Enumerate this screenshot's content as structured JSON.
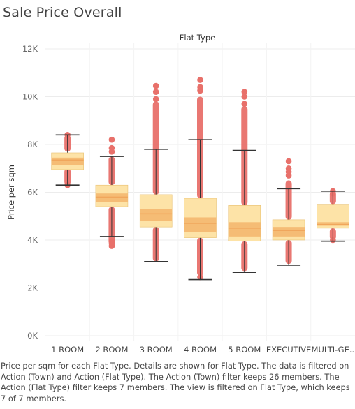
{
  "title": "Sale Price Overall",
  "caption": "Price per sqm for each Flat Type.  Details are shown for Flat Type. The data is filtered on Action (Town) and Action (Flat Type). The Action (Town) filter keeps 26 members. The Action (Flat Type) filter keeps 7 members. The view is filtered on Flat Type, which keeps 7 of 7 members.",
  "colors": {
    "outlier": "#e8706a",
    "box_outer": "#fde3a7",
    "box_inner": "#f5bc75",
    "median": "#f0a65c",
    "whisker": "#333333",
    "grid": "#ececec"
  },
  "chart_data": {
    "type": "box",
    "column_header": "Flat Type",
    "ylabel": "Price per sqm",
    "ylim": [
      0,
      12000
    ],
    "yticks": [
      0,
      2000,
      4000,
      6000,
      8000,
      10000,
      12000
    ],
    "ytick_labels": [
      "0K",
      "2K",
      "4K",
      "6K",
      "8K",
      "10K",
      "12K"
    ],
    "categories": [
      "1 ROOM",
      "2 ROOM",
      "3 ROOM",
      "4 ROOM",
      "5 ROOM",
      "EXECUTIVE",
      "MULTI-GE.."
    ],
    "boxes": [
      {
        "category": "1 ROOM",
        "lower_whisker": 6300,
        "q1": 6950,
        "inner_low": 7150,
        "median": 7350,
        "inner_high": 7450,
        "q3": 7650,
        "upper_whisker": 8400,
        "outliers_low": [
          6300
        ],
        "outliers_high": [
          8400
        ],
        "dense_low": [
          6300,
          7000
        ],
        "dense_high": [
          7700,
          8400
        ]
      },
      {
        "category": "2 ROOM",
        "lower_whisker": 4150,
        "q1": 5400,
        "inner_low": 5600,
        "median": 5800,
        "inner_high": 5950,
        "q3": 6300,
        "upper_whisker": 7500,
        "outliers_low": [
          3750,
          3850,
          3950
        ],
        "outliers_high": [
          7700,
          7850,
          8200
        ],
        "dense_low": [
          3800,
          5400
        ],
        "dense_high": [
          6300,
          7500
        ]
      },
      {
        "category": "3 ROOM",
        "lower_whisker": 3100,
        "q1": 4550,
        "inner_low": 4800,
        "median": 5100,
        "inner_high": 5300,
        "q3": 5900,
        "upper_whisker": 7800,
        "outliers_low": [],
        "outliers_high": [
          10450,
          10200,
          9900
        ],
        "dense_low": [
          3100,
          4550
        ],
        "dense_high": [
          5900,
          9800
        ]
      },
      {
        "category": "4 ROOM",
        "lower_whisker": 2350,
        "q1": 4100,
        "inner_low": 4350,
        "median": 4700,
        "inner_high": 4950,
        "q3": 5750,
        "upper_whisker": 8200,
        "outliers_low": [
          2450
        ],
        "outliers_high": [
          10700,
          10400,
          10250
        ],
        "dense_low": [
          2500,
          4100
        ],
        "dense_high": [
          5750,
          10000
        ]
      },
      {
        "category": "5 ROOM",
        "lower_whisker": 2650,
        "q1": 3950,
        "inner_low": 4150,
        "median": 4500,
        "inner_high": 4750,
        "q3": 5450,
        "upper_whisker": 7750,
        "outliers_low": [],
        "outliers_high": [
          10200,
          10000,
          9700
        ],
        "dense_low": [
          2700,
          3950
        ],
        "dense_high": [
          5450,
          9600
        ]
      },
      {
        "category": "EXECUTIVE",
        "lower_whisker": 2950,
        "q1": 4000,
        "inner_low": 4150,
        "median": 4400,
        "inner_high": 4550,
        "q3": 4850,
        "upper_whisker": 6150,
        "outliers_low": [],
        "outliers_high": [
          7300,
          7000,
          6850,
          6700
        ],
        "dense_low": [
          3000,
          4000
        ],
        "dense_high": [
          4850,
          6500
        ]
      },
      {
        "category": "MULTI-GE..",
        "lower_whisker": 3950,
        "q1": 4500,
        "inner_low": 4600,
        "median": 4650,
        "inner_high": 4750,
        "q3": 5500,
        "upper_whisker": 6050,
        "outliers_low": [
          4000
        ],
        "outliers_high": [
          6050,
          5950
        ],
        "dense_low": [
          4000,
          4500
        ],
        "dense_high": [
          5500,
          6050
        ]
      }
    ]
  }
}
